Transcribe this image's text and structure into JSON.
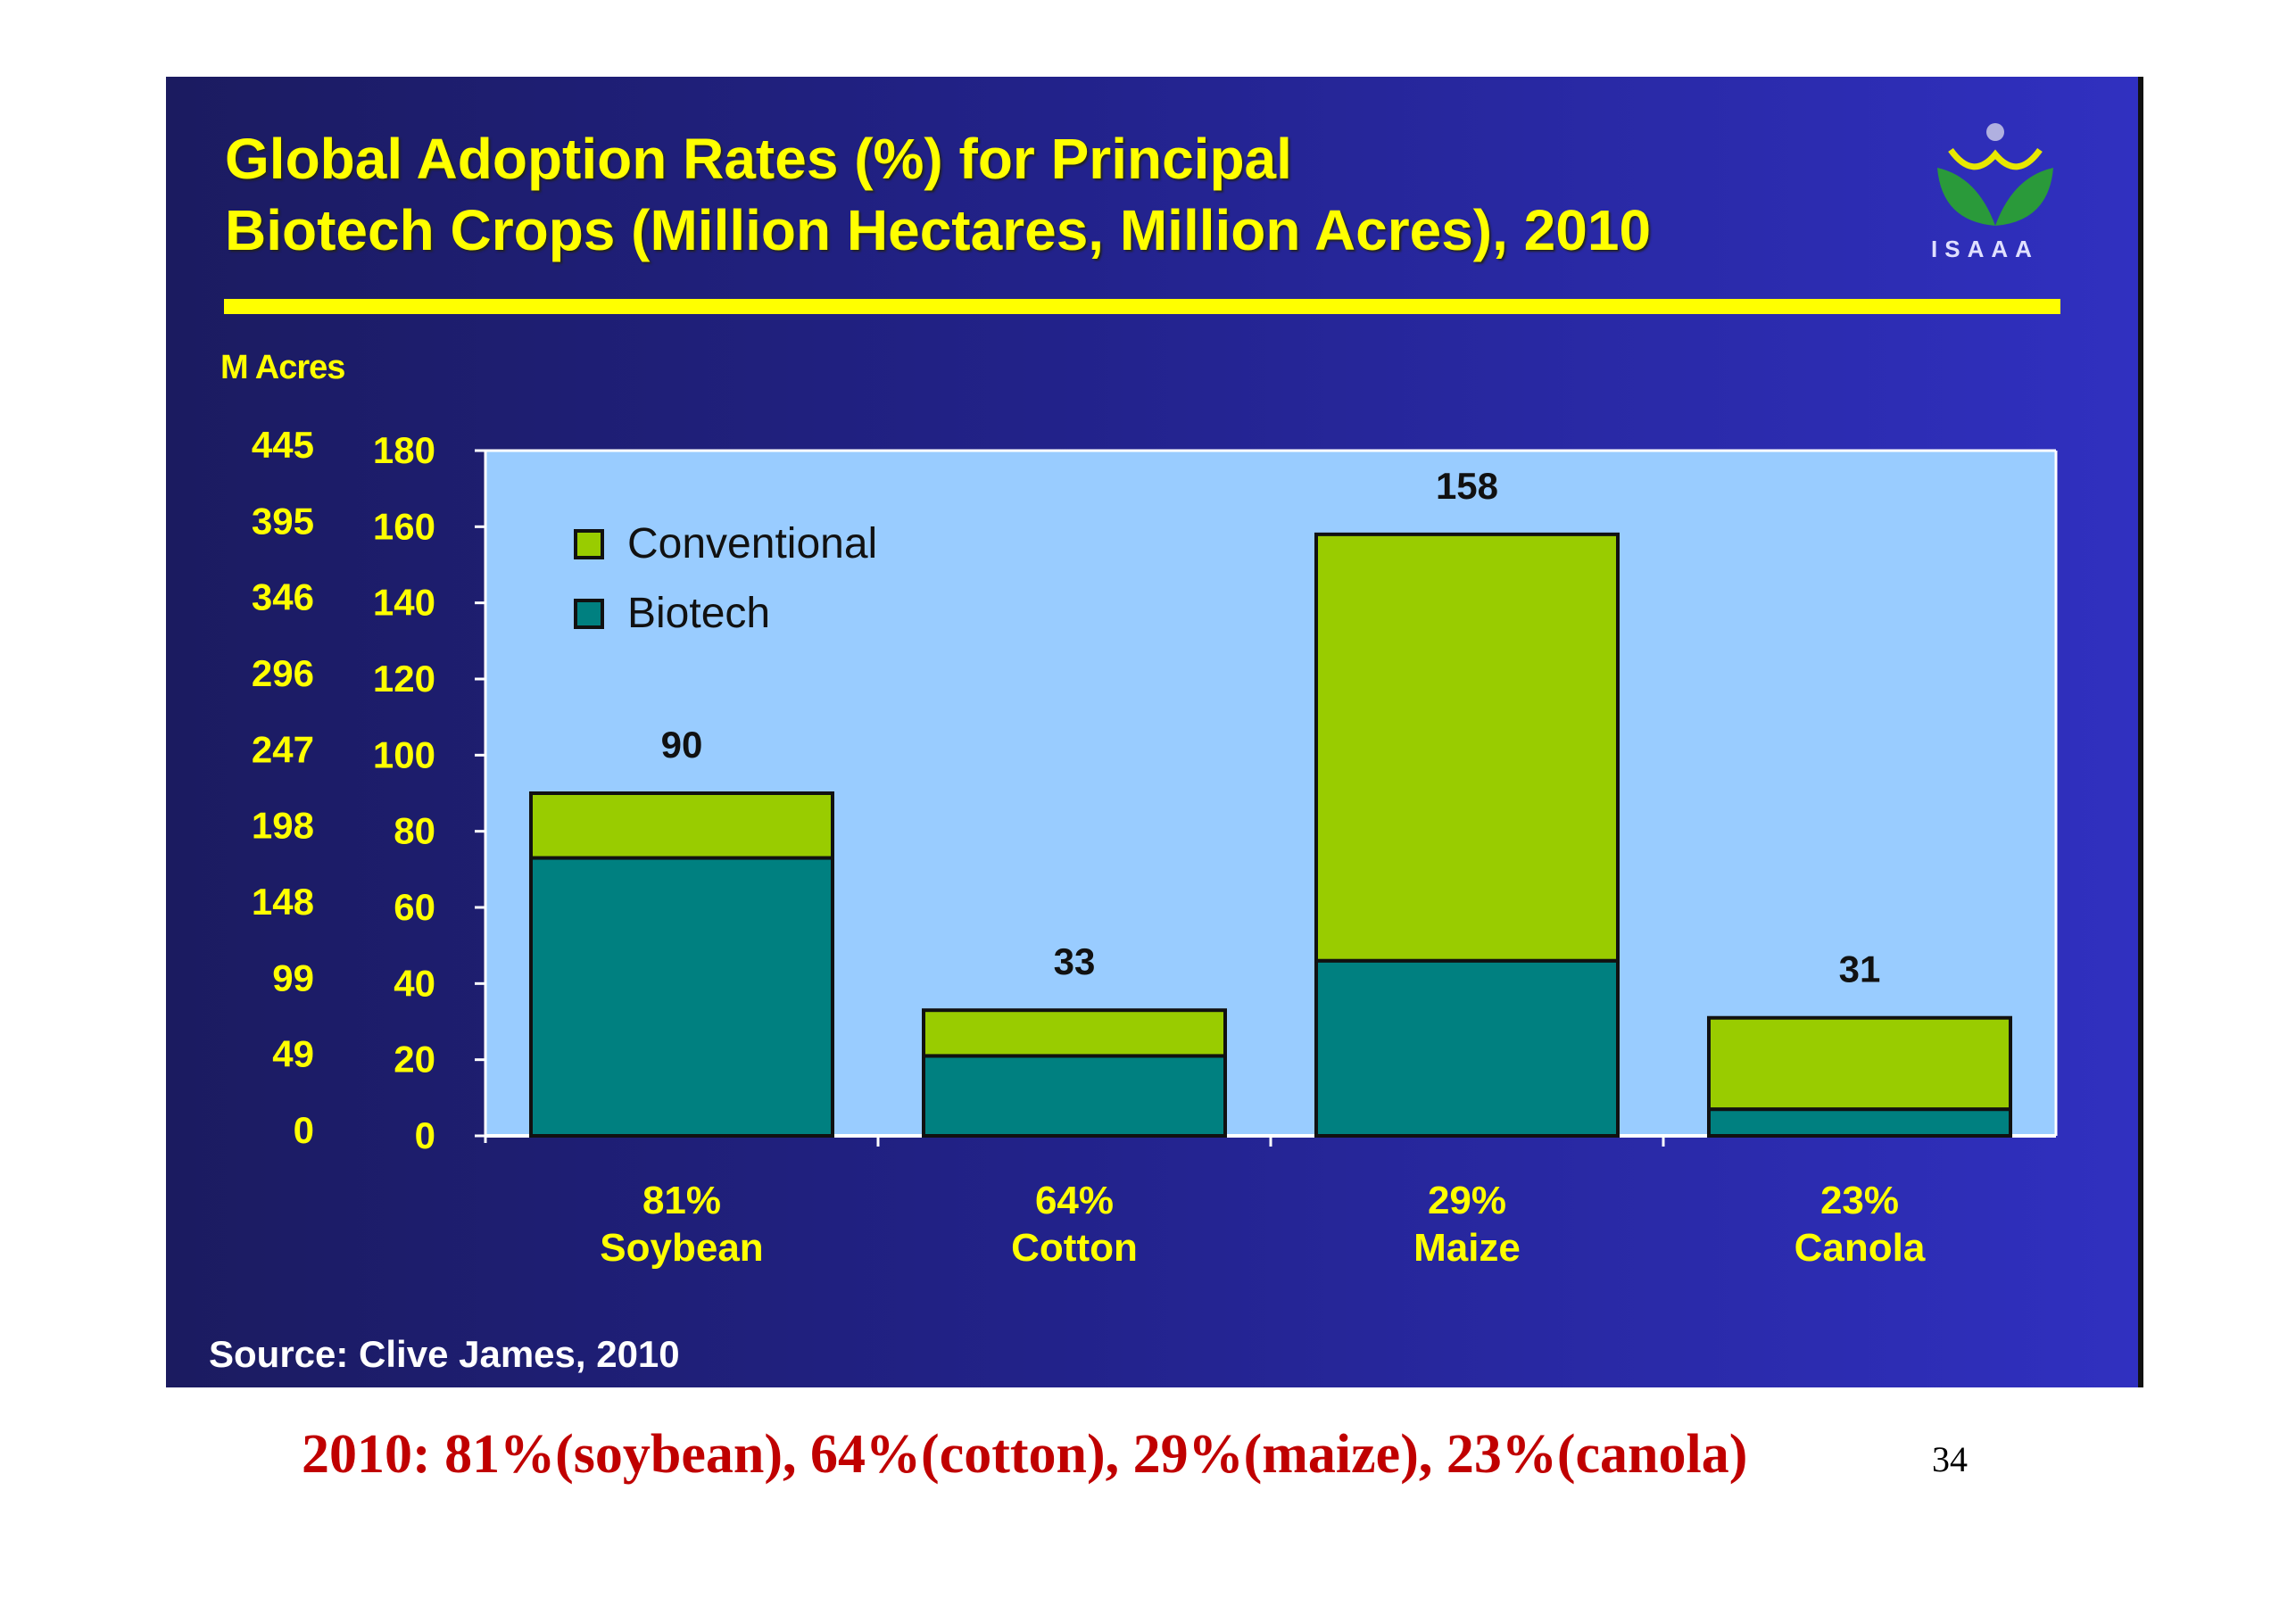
{
  "slide": {
    "title_line1": "Global Adoption Rates (%) for Principal",
    "title_line2": "Biotech Crops (Million Hectares, Million Acres), 2010",
    "logo_text": "ISAAA",
    "source": "Source: Clive James, 2010"
  },
  "caption": "2010:  81%(soybean), 64%(cotton), 29%(maize), 23%(canola)",
  "page_number": "34",
  "chart_data": {
    "type": "bar",
    "stacked": true,
    "title": "Global Adoption Rates (%) for Principal Biotech Crops (Million Hectares, Million Acres), 2010",
    "categories": [
      "Soybean",
      "Cotton",
      "Maize",
      "Canola"
    ],
    "category_percent_labels": [
      "81%",
      "64%",
      "29%",
      "23%"
    ],
    "series": [
      {
        "name": "Biotech",
        "color": "#008080",
        "values": [
          73,
          21,
          46,
          7
        ]
      },
      {
        "name": "Conventional",
        "color": "#99cc00",
        "values": [
          17,
          12,
          112,
          24
        ]
      }
    ],
    "totals": [
      90,
      33,
      158,
      31
    ],
    "ylim": [
      0,
      180
    ],
    "y_ticks_hectares": [
      0,
      20,
      40,
      60,
      80,
      100,
      120,
      140,
      160,
      180
    ],
    "y_ticks_acres": [
      "0",
      "49",
      "99",
      "148",
      "198",
      "247",
      "296",
      "346",
      "395",
      "445"
    ],
    "secondary_ylabel": "M Acres",
    "legend": {
      "position": "top-left",
      "entries": [
        "Conventional",
        "Biotech"
      ]
    },
    "plot_background": "#99ccff",
    "grid": false
  }
}
